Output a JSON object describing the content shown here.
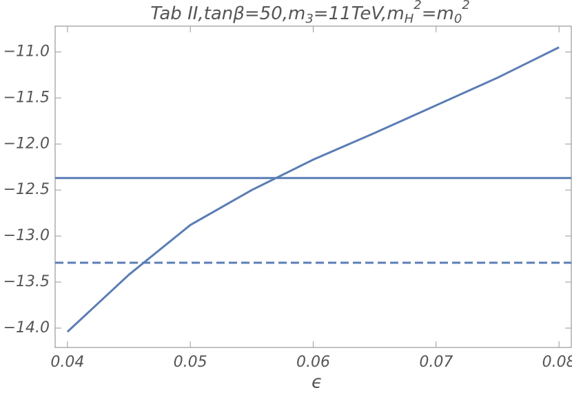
{
  "chart_data": {
    "type": "line",
    "title": [
      {
        "text": "Tab II,tanβ=50,m"
      },
      {
        "text": "3",
        "shift": "sub"
      },
      {
        "text": "=11TeV,m"
      },
      {
        "text": "H",
        "shift": "sub"
      },
      {
        "text": "2",
        "shift": "sup"
      },
      {
        "text": "=m"
      },
      {
        "text": "0",
        "shift": "sub"
      },
      {
        "text": "2",
        "shift": "sup"
      }
    ],
    "xlabel": "ϵ",
    "x": [
      0.04,
      0.045,
      0.05,
      0.055,
      0.06,
      0.065,
      0.07,
      0.075,
      0.08
    ],
    "series": [
      {
        "color": "#5a7db5",
        "values": [
          -14.04,
          -13.42,
          -12.88,
          -12.5,
          -12.17,
          -11.88,
          -11.58,
          -11.28,
          -10.95
        ]
      }
    ],
    "hlines": [
      {
        "value": -12.37,
        "color": "#5a7db5",
        "dash": "solid"
      },
      {
        "value": -13.29,
        "color": "#5a7db5",
        "dash": "dashed"
      }
    ],
    "xlim": [
      0.039,
      0.081
    ],
    "ylim": [
      -14.21,
      -10.72
    ],
    "xticks": [
      0.04,
      0.05,
      0.06,
      0.07,
      0.08
    ],
    "yticks": [
      {
        "value": -11.0,
        "label": "−11.0"
      },
      {
        "value": -11.5,
        "label": "−11.5"
      },
      {
        "value": -12.0,
        "label": "−12.0"
      },
      {
        "value": -12.5,
        "label": "−12.5"
      },
      {
        "value": -13.0,
        "label": "−13.0"
      },
      {
        "value": -13.5,
        "label": "−13.5"
      },
      {
        "value": -14.0,
        "label": "−14.0"
      }
    ]
  }
}
